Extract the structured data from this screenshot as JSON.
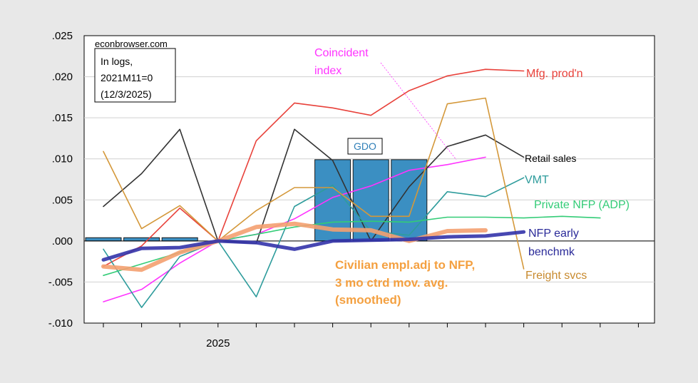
{
  "chart_data": {
    "type": "line",
    "x": [
      "2024M10",
      "2024M11",
      "2024M12",
      "2025M01",
      "2025M02",
      "2025M03",
      "2025M04",
      "2025M05",
      "2025M06",
      "2025M07",
      "2025M08",
      "2025M09",
      "2025M10",
      "2025M11",
      "2025M12"
    ],
    "x_tick_labels": [
      {
        "index": 3,
        "label": "2025"
      }
    ],
    "ylim": [
      -0.01,
      0.025
    ],
    "yticks": [
      {
        "v": 0.025,
        "label": ".025"
      },
      {
        "v": 0.02,
        "label": ".020"
      },
      {
        "v": 0.015,
        "label": ".015"
      },
      {
        "v": 0.01,
        "label": ".010"
      },
      {
        "v": 0.005,
        "label": ".005"
      },
      {
        "v": 0.0,
        "label": ".000"
      },
      {
        "v": -0.005,
        "label": "-.005"
      },
      {
        "v": -0.01,
        "label": "-.010"
      }
    ],
    "grid": true,
    "source_label": "econbrowser.com",
    "note_lines": [
      "In logs,",
      "2021M11=0",
      "(12/3/2025)"
    ],
    "bars": {
      "name": "GDO",
      "label": "GDO",
      "color": "#3b8fc2",
      "values": [
        0.0004,
        0.0004,
        0.0004,
        null,
        null,
        null,
        0.0099,
        0.0099,
        0.0099,
        null,
        null,
        null,
        null,
        null,
        null
      ]
    },
    "series": [
      {
        "name": "Coincident index",
        "label_lines": [
          "Coincident",
          "index"
        ],
        "color": "#ff33ff",
        "width": 1.6,
        "values": [
          -0.0074,
          -0.0059,
          -0.0027,
          0.0,
          0.0008,
          0.0027,
          0.0053,
          0.0067,
          0.0086,
          0.0093,
          0.0102,
          null,
          null,
          null,
          null
        ]
      },
      {
        "name": "Mfg. prod'n",
        "label_lines": [
          "Mfg. prod'n"
        ],
        "color": "#e8413a",
        "width": 1.6,
        "values": [
          -0.0031,
          -0.0006,
          0.004,
          0.0,
          0.0122,
          0.0168,
          0.0162,
          0.0153,
          0.0183,
          0.0201,
          0.0209,
          0.0207,
          null,
          null,
          null
        ]
      },
      {
        "name": "Retail sales",
        "label_lines": [
          "Retail sales"
        ],
        "color": "#333333",
        "width": 1.6,
        "values": [
          0.0042,
          0.0082,
          0.0136,
          0.0,
          -0.0003,
          0.0136,
          0.0098,
          0.0,
          0.0066,
          0.0115,
          0.0129,
          0.0102,
          null,
          null,
          null
        ]
      },
      {
        "name": "VMT",
        "label_lines": [
          "VMT"
        ],
        "color": "#2e9c9c",
        "width": 1.6,
        "values": [
          -0.001,
          -0.0081,
          -0.0019,
          0.0,
          -0.0068,
          0.0042,
          0.0068,
          0.0012,
          0.0007,
          0.006,
          0.0054,
          0.0077,
          null,
          null,
          null
        ]
      },
      {
        "name": "Private NFP (ADP)",
        "label_lines": [
          "Private NFP (ADP)"
        ],
        "color": "#33cc77",
        "width": 1.6,
        "values": [
          -0.0042,
          -0.0028,
          -0.0014,
          0.0,
          0.0008,
          0.0017,
          0.0023,
          0.0024,
          0.0023,
          0.0029,
          0.0029,
          0.0028,
          0.003,
          0.0028,
          null
        ]
      },
      {
        "name": "Freight svcs",
        "label_lines": [
          "Freight svcs"
        ],
        "color": "#d4983a",
        "width": 1.6,
        "values": [
          0.0109,
          0.0015,
          0.0043,
          0.0,
          0.0037,
          0.0065,
          0.0065,
          0.003,
          0.003,
          0.0167,
          0.0174,
          -0.0034,
          null,
          null,
          null
        ]
      },
      {
        "name": "Civilian empl.adj to NFP, 3 mo ctrd mov. avg. (smoothed)",
        "label_lines": [
          "Civilian empl.adj to NFP,",
          "3 mo ctrd mov. avg.",
          "(smoothed)"
        ],
        "color": "#f4a070",
        "width": 6,
        "values": [
          -0.0031,
          -0.0035,
          -0.0014,
          0.0,
          0.0017,
          0.0021,
          0.0014,
          0.0013,
          0.0,
          0.0012,
          0.0013,
          null,
          null,
          null,
          null
        ]
      },
      {
        "name": "NFP early benchmk",
        "label_lines": [
          "NFP early",
          "benchmk"
        ],
        "color": "#3333aa",
        "width": 5,
        "values": [
          -0.0023,
          -0.0009,
          -0.0008,
          0.0,
          -0.0002,
          -0.001,
          0.0,
          0.0001,
          0.0002,
          0.0005,
          0.0006,
          0.0011,
          null,
          null,
          null
        ]
      }
    ]
  }
}
